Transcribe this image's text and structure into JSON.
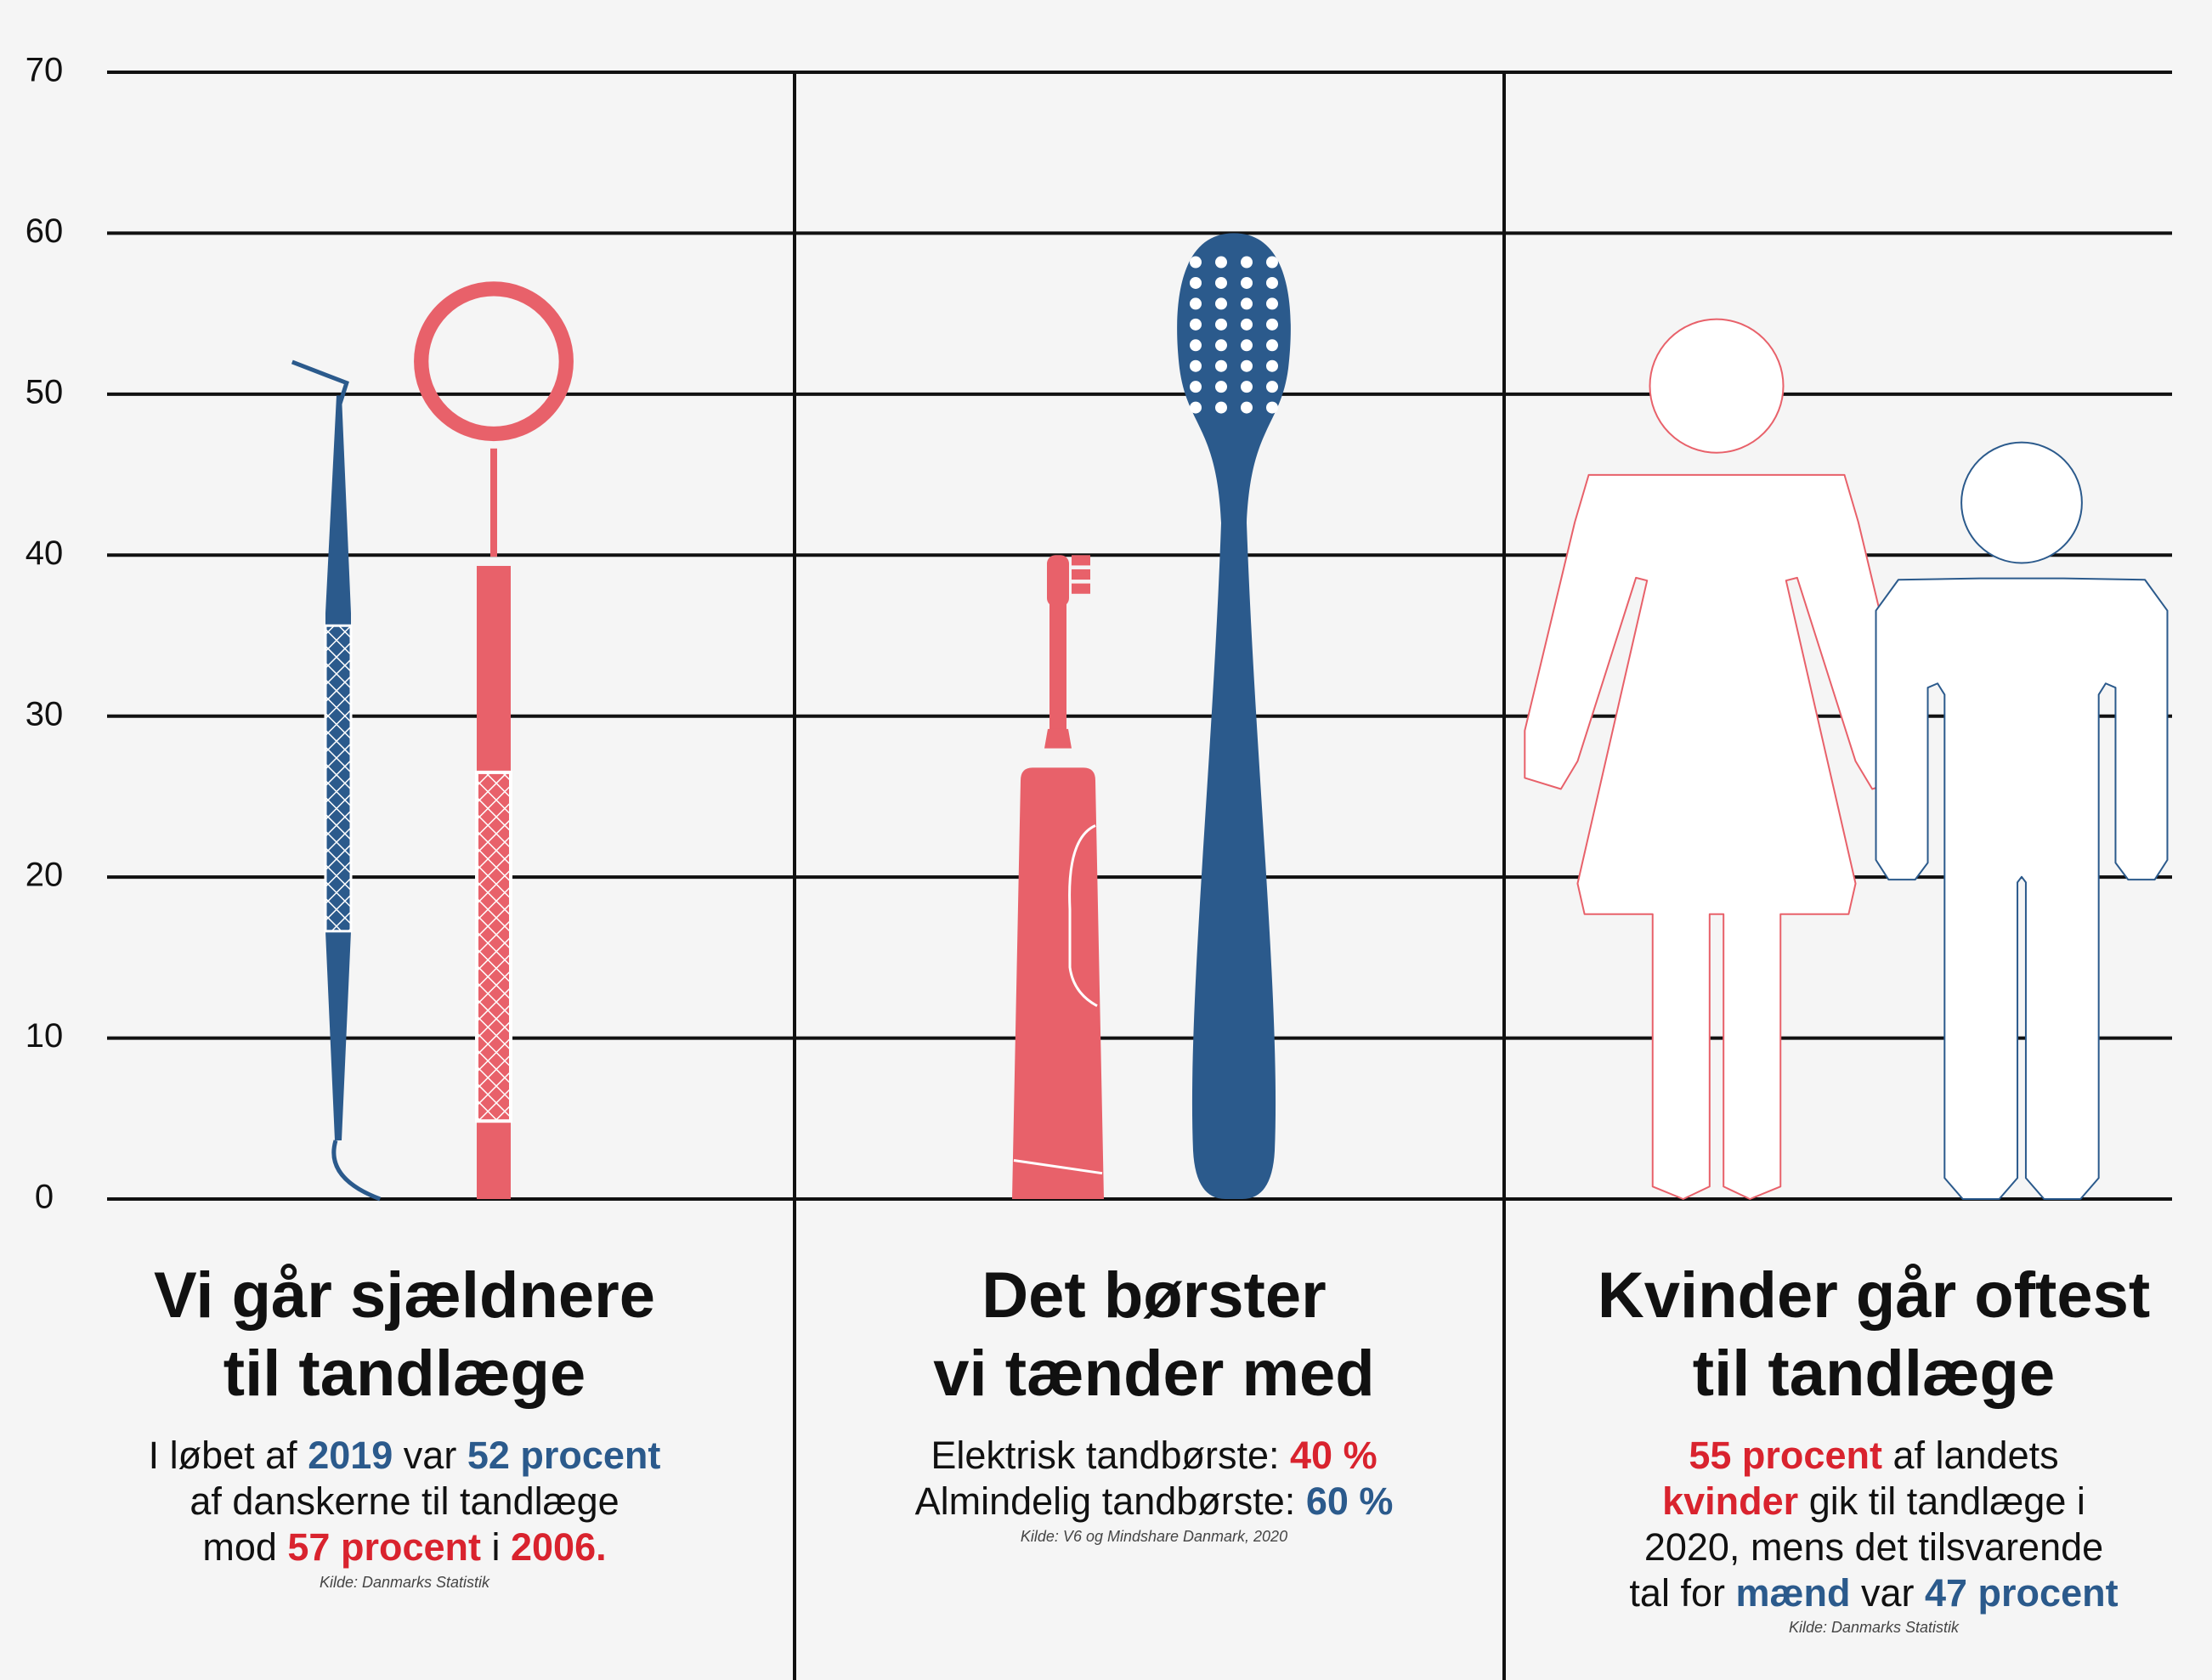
{
  "chart_data": {
    "type": "pictogram",
    "ylim": [
      0,
      70
    ],
    "yticks": [
      0,
      10,
      20,
      30,
      40,
      50,
      60,
      70
    ],
    "grid": true,
    "panels": [
      {
        "title": [
          "Vi går sjældnere",
          "til tandlæge"
        ],
        "values": [
          52,
          57
        ],
        "colors": [
          "#2b5a8c",
          "#e8616a"
        ],
        "text": [
          [
            {
              "text": "I løbet af "
            },
            {
              "text": "2019",
              "color": "#2b5a8c"
            },
            {
              "text": " var "
            },
            {
              "text": "52 procent",
              "color": "#2b5a8c"
            }
          ],
          [
            {
              "text": "af danskerne til tandlæge"
            }
          ],
          [
            {
              "text": "mod "
            },
            {
              "text": "57 procent",
              "color": "#d9232e"
            },
            {
              "text": " i "
            },
            {
              "text": "2006.",
              "color": "#d9232e"
            }
          ]
        ],
        "source": "Kilde: Danmarks Statistik"
      },
      {
        "title": [
          "Det børster",
          "vi tænder med"
        ],
        "values": [
          40,
          60
        ],
        "colors": [
          "#e8616a",
          "#2b5a8c"
        ],
        "text": [
          [
            {
              "text": "Elektrisk tandbørste: "
            },
            {
              "text": "40 %",
              "color": "#d9232e"
            }
          ],
          [
            {
              "text": "Almindelig tandbørste: "
            },
            {
              "text": "60 %",
              "color": "#2b5a8c"
            }
          ]
        ],
        "source": "Kilde: V6 og Mindshare Danmark, 2020"
      },
      {
        "title": [
          "Kvinder går oftest",
          "til tandlæge"
        ],
        "values": [
          55,
          47
        ],
        "colors": [
          "#e8616a",
          "#2b5a8c"
        ],
        "text": [
          [
            {
              "text": "55 procent",
              "color": "#d9232e"
            },
            {
              "text": " af landets"
            }
          ],
          [
            {
              "text": "kvinder",
              "color": "#d9232e"
            },
            {
              "text": " gik til tandlæge i"
            }
          ],
          [
            {
              "text": "2020, mens det tilsvarende"
            }
          ],
          [
            {
              "text": "tal for "
            },
            {
              "text": "mænd",
              "color": "#2b5a8c"
            },
            {
              "text": " var "
            },
            {
              "text": "47 procent",
              "color": "#2b5a8c"
            }
          ]
        ],
        "source": "Kilde: Danmarks Statistik"
      }
    ]
  }
}
